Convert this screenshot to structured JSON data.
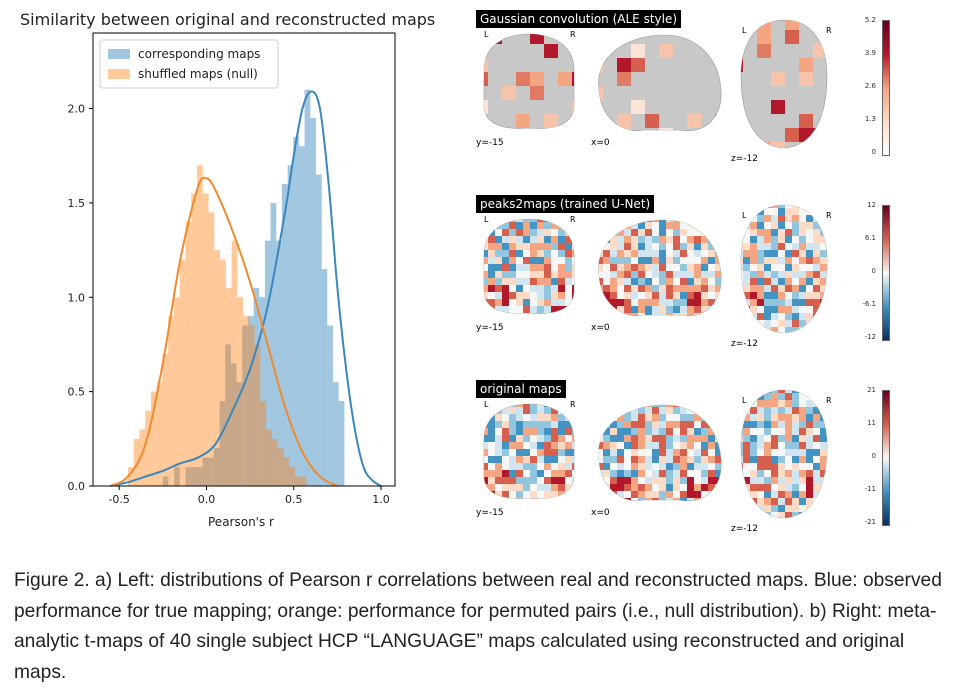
{
  "chart_data": [
    {
      "type": "histogram",
      "title": "Similarity between original and reconstructed maps",
      "xlabel": "Pearson's r",
      "ylabel": "",
      "xlim": [
        -0.65,
        1.08
      ],
      "ylim": [
        0,
        2.4
      ],
      "xticks": [
        "-0.5",
        "0.0",
        "0.5",
        "1.0"
      ],
      "yticks": [
        "0.0",
        "0.5",
        "1.0",
        "1.5",
        "2.0"
      ],
      "legend_position": "upper-left",
      "series": [
        {
          "name": "corresponding maps",
          "color": "#1f77b4",
          "bin_edges": [
            -0.25,
            -0.218,
            -0.185,
            -0.153,
            -0.12,
            -0.088,
            -0.055,
            -0.023,
            0.01,
            0.042,
            0.075,
            0.107,
            0.14,
            0.172,
            0.205,
            0.237,
            0.27,
            0.302,
            0.335,
            0.367,
            0.4,
            0.432,
            0.465,
            0.497,
            0.53,
            0.562,
            0.595,
            0.627,
            0.66,
            0.692,
            0.725,
            0.757,
            0.79
          ],
          "values": [
            0.05,
            0.0,
            0.1,
            0.0,
            0.1,
            0.1,
            0.1,
            0.15,
            0.15,
            0.2,
            0.45,
            0.75,
            0.65,
            0.55,
            0.85,
            0.9,
            1.05,
            1.0,
            1.3,
            1.5,
            1.3,
            1.6,
            1.7,
            1.85,
            1.8,
            2.1,
            1.95,
            1.65,
            1.15,
            0.85,
            0.55,
            0.45
          ]
        },
        {
          "name": "shuffled maps (null)",
          "color": "#ff7f0e",
          "bin_edges": [
            -0.45,
            -0.417,
            -0.384,
            -0.351,
            -0.318,
            -0.285,
            -0.252,
            -0.219,
            -0.186,
            -0.153,
            -0.12,
            -0.087,
            -0.054,
            -0.021,
            0.012,
            0.045,
            0.078,
            0.111,
            0.144,
            0.177,
            0.21,
            0.243,
            0.276,
            0.309,
            0.342,
            0.375,
            0.408,
            0.441,
            0.474,
            0.507,
            0.54,
            0.573
          ],
          "values": [
            0.1,
            0.25,
            0.3,
            0.4,
            0.5,
            0.55,
            0.7,
            0.9,
            1.0,
            1.2,
            1.4,
            1.55,
            1.7,
            1.55,
            1.45,
            1.25,
            1.2,
            1.05,
            1.3,
            1.0,
            0.9,
            0.85,
            0.75,
            0.45,
            0.3,
            0.25,
            0.2,
            0.15,
            0.1,
            0.05,
            0.05
          ]
        }
      ],
      "kde": [
        {
          "series": "corresponding maps",
          "color": "#3a87bd",
          "x": [
            -0.55,
            -0.45,
            -0.35,
            -0.25,
            -0.15,
            -0.05,
            0.05,
            0.15,
            0.25,
            0.35,
            0.45,
            0.5,
            0.55,
            0.6,
            0.65,
            0.7,
            0.75,
            0.8,
            0.85,
            0.9,
            0.95,
            1.0
          ],
          "y": [
            0.0,
            0.02,
            0.05,
            0.08,
            0.12,
            0.15,
            0.22,
            0.4,
            0.62,
            0.95,
            1.45,
            1.75,
            2.0,
            2.09,
            2.0,
            1.6,
            1.05,
            0.62,
            0.3,
            0.1,
            0.03,
            0.0
          ]
        },
        {
          "series": "shuffled maps (null)",
          "color": "#f08a2c",
          "x": [
            -0.55,
            -0.45,
            -0.35,
            -0.25,
            -0.15,
            -0.05,
            0.0,
            0.05,
            0.15,
            0.25,
            0.35,
            0.45,
            0.55,
            0.65,
            0.75
          ],
          "y": [
            0.0,
            0.05,
            0.22,
            0.65,
            1.2,
            1.58,
            1.63,
            1.57,
            1.35,
            1.08,
            0.75,
            0.42,
            0.18,
            0.05,
            0.0
          ]
        }
      ]
    },
    {
      "type": "heatmap",
      "panels": [
        {
          "label": "Gaussian convolution (ALE style)",
          "slices": [
            "y=-15",
            "x=0",
            "z=-12"
          ],
          "colorbar_ticks": [
            "5.2",
            "3.9",
            "2.6",
            "1.3",
            "0"
          ],
          "colorbar_colors": [
            "#67001f",
            "#b2182b",
            "#f4a582",
            "#fddbc7",
            "#ffffff"
          ]
        },
        {
          "label": "peaks2maps (trained U-Net)",
          "slices": [
            "y=-15",
            "x=0",
            "z=-12"
          ],
          "colorbar_ticks": [
            "12",
            "6.1",
            "0",
            "-6.1",
            "-12"
          ],
          "colorbar_colors": [
            "#67001f",
            "#d6604d",
            "#f7f7f7",
            "#4393c3",
            "#053061"
          ]
        },
        {
          "label": "original maps",
          "slices": [
            "y=-15",
            "x=0",
            "z=-12"
          ],
          "colorbar_ticks": [
            "21",
            "11",
            "0",
            "-11",
            "-21"
          ],
          "colorbar_colors": [
            "#67001f",
            "#d6604d",
            "#f7f7f7",
            "#4393c3",
            "#053061"
          ]
        }
      ],
      "side_labels": {
        "left": "L",
        "right": "R"
      }
    }
  ],
  "caption": "Figure 2. a) Left: distributions of Pearson r correlations between real and reconstructed maps. Blue: observed performance for true mapping; orange: performance for permuted pairs (i.e., null distribution).  b) Right: meta-analytic t-maps of 40 single subject HCP “LANGUAGE” maps calculated using reconstructed and original maps."
}
